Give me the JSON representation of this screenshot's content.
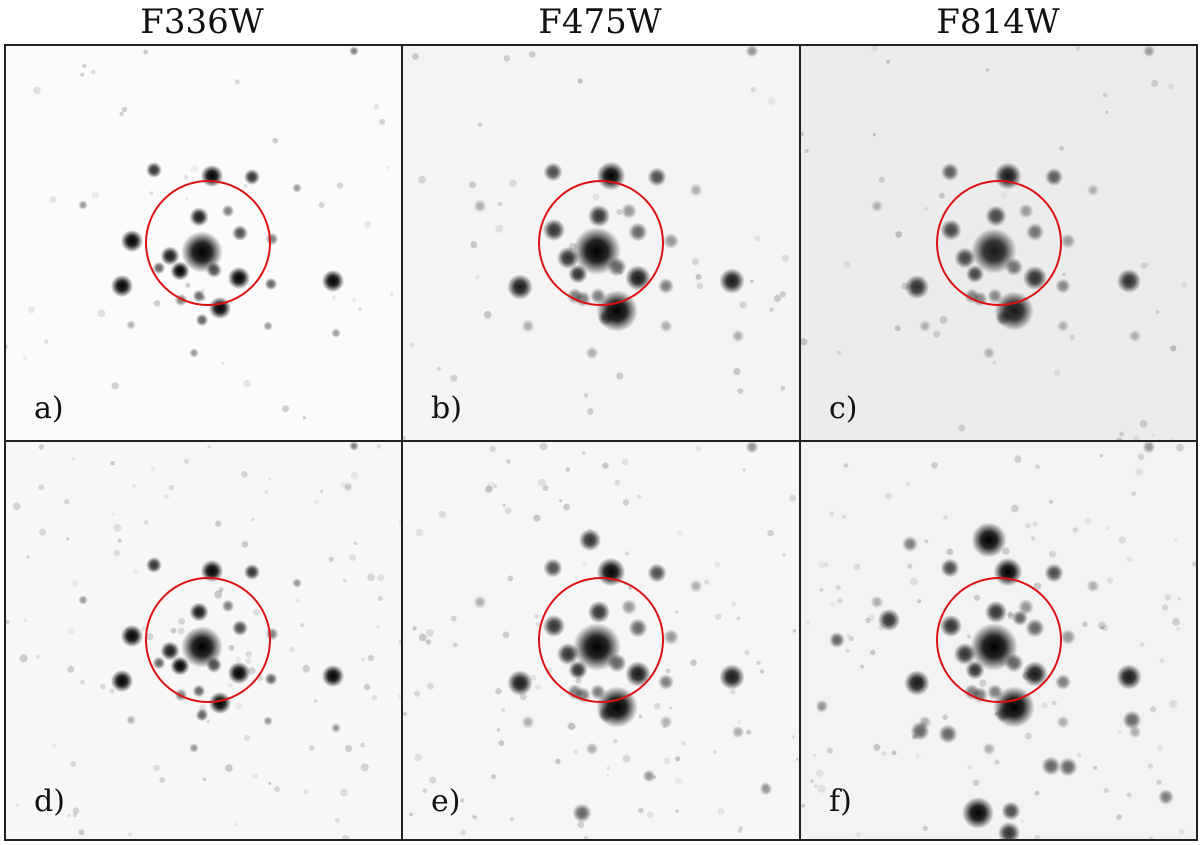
{
  "columns": [
    "F336W",
    "F475W",
    "F814W"
  ],
  "panels": [
    {
      "label": "a)",
      "filter": "F336W",
      "bg": "#fbfbfb"
    },
    {
      "label": "b)",
      "filter": "F475W",
      "bg": "#f4f4f4"
    },
    {
      "label": "c)",
      "filter": "F814W",
      "bg": "#ececec"
    },
    {
      "label": "d)",
      "filter": "F336W",
      "bg": "#f7f7f7"
    },
    {
      "label": "e)",
      "filter": "F475W",
      "bg": "#f6f6f6"
    },
    {
      "label": "f)",
      "filter": "F814W",
      "bg": "#f3f3f3"
    }
  ],
  "colors": {
    "aperture": "#dd1111",
    "border": "#222222",
    "star": "#000000"
  }
}
